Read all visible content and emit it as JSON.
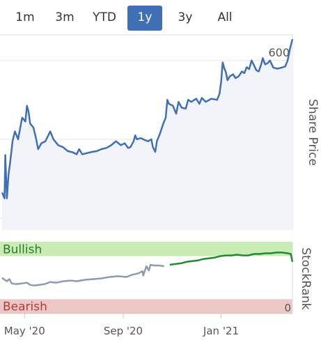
{
  "range_selector": {
    "buttons": [
      {
        "label": "1m",
        "active": false
      },
      {
        "label": "3m",
        "active": false
      },
      {
        "label": "YTD",
        "active": false
      },
      {
        "label": "1y",
        "active": true
      },
      {
        "label": "3y",
        "active": false
      },
      {
        "label": "All",
        "active": false
      }
    ]
  },
  "colors": {
    "price_line": "#3f6fb5",
    "price_fill": "#f2f4f9",
    "bullish_zone": "#c8ecb4",
    "bearish_zone": "#ecc8c4",
    "rank_line_past": "#8e9aad",
    "rank_line_recent": "#1f8a2e",
    "active_button": "#3f6fb5"
  },
  "chart_data": [
    {
      "type": "area",
      "ylabel": "Share Price",
      "ylim": [
        170,
        665
      ],
      "yticks": [
        200,
        400,
        600
      ],
      "x_axis": "date",
      "xlim": [
        "2020-04-03",
        "2021-03-31"
      ],
      "xticks": [
        {
          "date": "2020-05-01",
          "label": "May '20"
        },
        {
          "date": "2020-09-01",
          "label": "Sep '20"
        },
        {
          "date": "2021-01-01",
          "label": "Jan '21"
        }
      ],
      "series": [
        {
          "points": [
            [
              "2020-04-03",
              265
            ],
            [
              "2020-04-06",
              250
            ],
            [
              "2020-04-07",
              360
            ],
            [
              "2020-04-09",
              250
            ],
            [
              "2020-04-11",
              310
            ],
            [
              "2020-04-13",
              340
            ],
            [
              "2020-04-16",
              395
            ],
            [
              "2020-04-19",
              420
            ],
            [
              "2020-04-23",
              400
            ],
            [
              "2020-04-28",
              455
            ],
            [
              "2020-05-02",
              445
            ],
            [
              "2020-05-04",
              485
            ],
            [
              "2020-05-06",
              470
            ],
            [
              "2020-05-08",
              440
            ],
            [
              "2020-05-12",
              430
            ],
            [
              "2020-05-15",
              405
            ],
            [
              "2020-05-18",
              375
            ],
            [
              "2020-05-22",
              390
            ],
            [
              "2020-05-27",
              395
            ],
            [
              "2020-06-02",
              420
            ],
            [
              "2020-06-06",
              400
            ],
            [
              "2020-06-12",
              385
            ],
            [
              "2020-06-18",
              380
            ],
            [
              "2020-06-24",
              370
            ],
            [
              "2020-06-30",
              367
            ],
            [
              "2020-07-05",
              362
            ],
            [
              "2020-07-08",
              375
            ],
            [
              "2020-07-12",
              362
            ],
            [
              "2020-07-18",
              365
            ],
            [
              "2020-07-24",
              368
            ],
            [
              "2020-07-30",
              370
            ],
            [
              "2020-08-05",
              375
            ],
            [
              "2020-08-11",
              378
            ],
            [
              "2020-08-17",
              385
            ],
            [
              "2020-08-23",
              395
            ],
            [
              "2020-08-29",
              385
            ],
            [
              "2020-09-03",
              390
            ],
            [
              "2020-09-07",
              378
            ],
            [
              "2020-09-10",
              380
            ],
            [
              "2020-09-14",
              395
            ],
            [
              "2020-09-16",
              410
            ],
            [
              "2020-09-18",
              400
            ],
            [
              "2020-09-23",
              403
            ],
            [
              "2020-09-28",
              398
            ],
            [
              "2020-10-02",
              395
            ],
            [
              "2020-10-06",
              400
            ],
            [
              "2020-10-08",
              380
            ],
            [
              "2020-10-11",
              368
            ],
            [
              "2020-10-13",
              395
            ],
            [
              "2020-10-17",
              415
            ],
            [
              "2020-10-21",
              440
            ],
            [
              "2020-10-24",
              455
            ],
            [
              "2020-10-26",
              500
            ],
            [
              "2020-10-28",
              490
            ],
            [
              "2020-11-02",
              485
            ],
            [
              "2020-11-06",
              465
            ],
            [
              "2020-11-09",
              495
            ],
            [
              "2020-11-13",
              480
            ],
            [
              "2020-11-18",
              478
            ],
            [
              "2020-11-21",
              500
            ],
            [
              "2020-11-25",
              495
            ],
            [
              "2020-12-01",
              503
            ],
            [
              "2020-12-05",
              490
            ],
            [
              "2020-12-08",
              505
            ],
            [
              "2020-12-13",
              495
            ],
            [
              "2020-12-20",
              503
            ],
            [
              "2020-12-27",
              500
            ],
            [
              "2020-12-30",
              515
            ],
            [
              "2021-01-01",
              545
            ],
            [
              "2021-01-03",
              595
            ],
            [
              "2021-01-05",
              580
            ],
            [
              "2021-01-07",
              570
            ],
            [
              "2021-01-09",
              550
            ],
            [
              "2021-01-12",
              560
            ],
            [
              "2021-01-16",
              565
            ],
            [
              "2021-01-19",
              555
            ],
            [
              "2021-01-23",
              560
            ],
            [
              "2021-01-27",
              572
            ],
            [
              "2021-01-30",
              568
            ],
            [
              "2021-02-02",
              583
            ],
            [
              "2021-02-05",
              578
            ],
            [
              "2021-02-08",
              600
            ],
            [
              "2021-02-11",
              588
            ],
            [
              "2021-02-14",
              575
            ],
            [
              "2021-02-17",
              572
            ],
            [
              "2021-02-20",
              590
            ],
            [
              "2021-02-22",
              606
            ],
            [
              "2021-02-25",
              590
            ],
            [
              "2021-02-28",
              593
            ],
            [
              "2021-03-03",
              600
            ],
            [
              "2021-03-07",
              582
            ],
            [
              "2021-03-12",
              579
            ],
            [
              "2021-03-18",
              582
            ],
            [
              "2021-03-22",
              585
            ],
            [
              "2021-03-25",
              600
            ],
            [
              "2021-03-28",
              630
            ],
            [
              "2021-03-31",
              654
            ]
          ]
        }
      ]
    },
    {
      "type": "line",
      "ylabel": "StockRank",
      "ylim": [
        0,
        100
      ],
      "yticks": [
        0
      ],
      "bands": [
        {
          "label": "Bullish",
          "from": 80,
          "to": 100
        },
        {
          "label": "Bearish",
          "from": 0,
          "to": 20
        }
      ],
      "series": [
        {
          "points": [
            [
              "2020-04-03",
              50
            ],
            [
              "2020-04-06",
              47
            ],
            [
              "2020-04-09",
              45
            ],
            [
              "2020-04-12",
              48
            ],
            [
              "2020-04-15",
              42
            ],
            [
              "2020-04-20",
              41
            ],
            [
              "2020-04-28",
              42
            ],
            [
              "2020-05-04",
              43
            ],
            [
              "2020-05-08",
              40
            ],
            [
              "2020-05-13",
              39
            ],
            [
              "2020-05-20",
              40
            ],
            [
              "2020-05-26",
              41
            ],
            [
              "2020-06-02",
              44
            ],
            [
              "2020-06-10",
              43
            ],
            [
              "2020-06-18",
              45
            ],
            [
              "2020-06-28",
              46
            ],
            [
              "2020-07-05",
              45
            ],
            [
              "2020-07-15",
              47
            ],
            [
              "2020-07-25",
              48
            ],
            [
              "2020-08-05",
              49
            ],
            [
              "2020-08-15",
              51
            ],
            [
              "2020-08-25",
              52
            ],
            [
              "2020-09-05",
              51
            ],
            [
              "2020-09-12",
              54
            ],
            [
              "2020-09-20",
              56
            ],
            [
              "2020-09-25",
              59
            ],
            [
              "2020-09-26",
              53
            ],
            [
              "2020-09-30",
              66
            ],
            [
              "2020-10-03",
              60
            ],
            [
              "2020-10-05",
              68
            ],
            [
              "2020-10-09",
              67
            ],
            [
              "2020-10-15",
              67
            ],
            [
              "2020-10-22",
              66
            ],
            [
              "2020-10-29",
              68
            ],
            [
              "2020-11-05",
              69
            ],
            [
              "2020-11-12",
              70
            ],
            [
              "2020-11-19",
              72
            ],
            [
              "2020-11-26",
              73
            ],
            [
              "2020-12-03",
              74
            ],
            [
              "2020-12-10",
              76
            ],
            [
              "2020-12-17",
              77
            ],
            [
              "2020-12-24",
              78
            ],
            [
              "2020-12-31",
              80
            ],
            [
              "2021-01-07",
              81
            ],
            [
              "2021-01-14",
              81
            ],
            [
              "2021-01-21",
              82
            ],
            [
              "2021-01-28",
              81
            ],
            [
              "2021-02-04",
              81
            ],
            [
              "2021-02-11",
              83
            ],
            [
              "2021-02-18",
              83
            ],
            [
              "2021-02-25",
              84
            ],
            [
              "2021-03-04",
              84
            ],
            [
              "2021-03-11",
              85
            ],
            [
              "2021-03-18",
              85
            ],
            [
              "2021-03-25",
              84
            ],
            [
              "2021-03-29",
              83
            ],
            [
              "2021-03-31",
              72
            ]
          ],
          "recent_from": "2020-10-28"
        }
      ]
    }
  ]
}
